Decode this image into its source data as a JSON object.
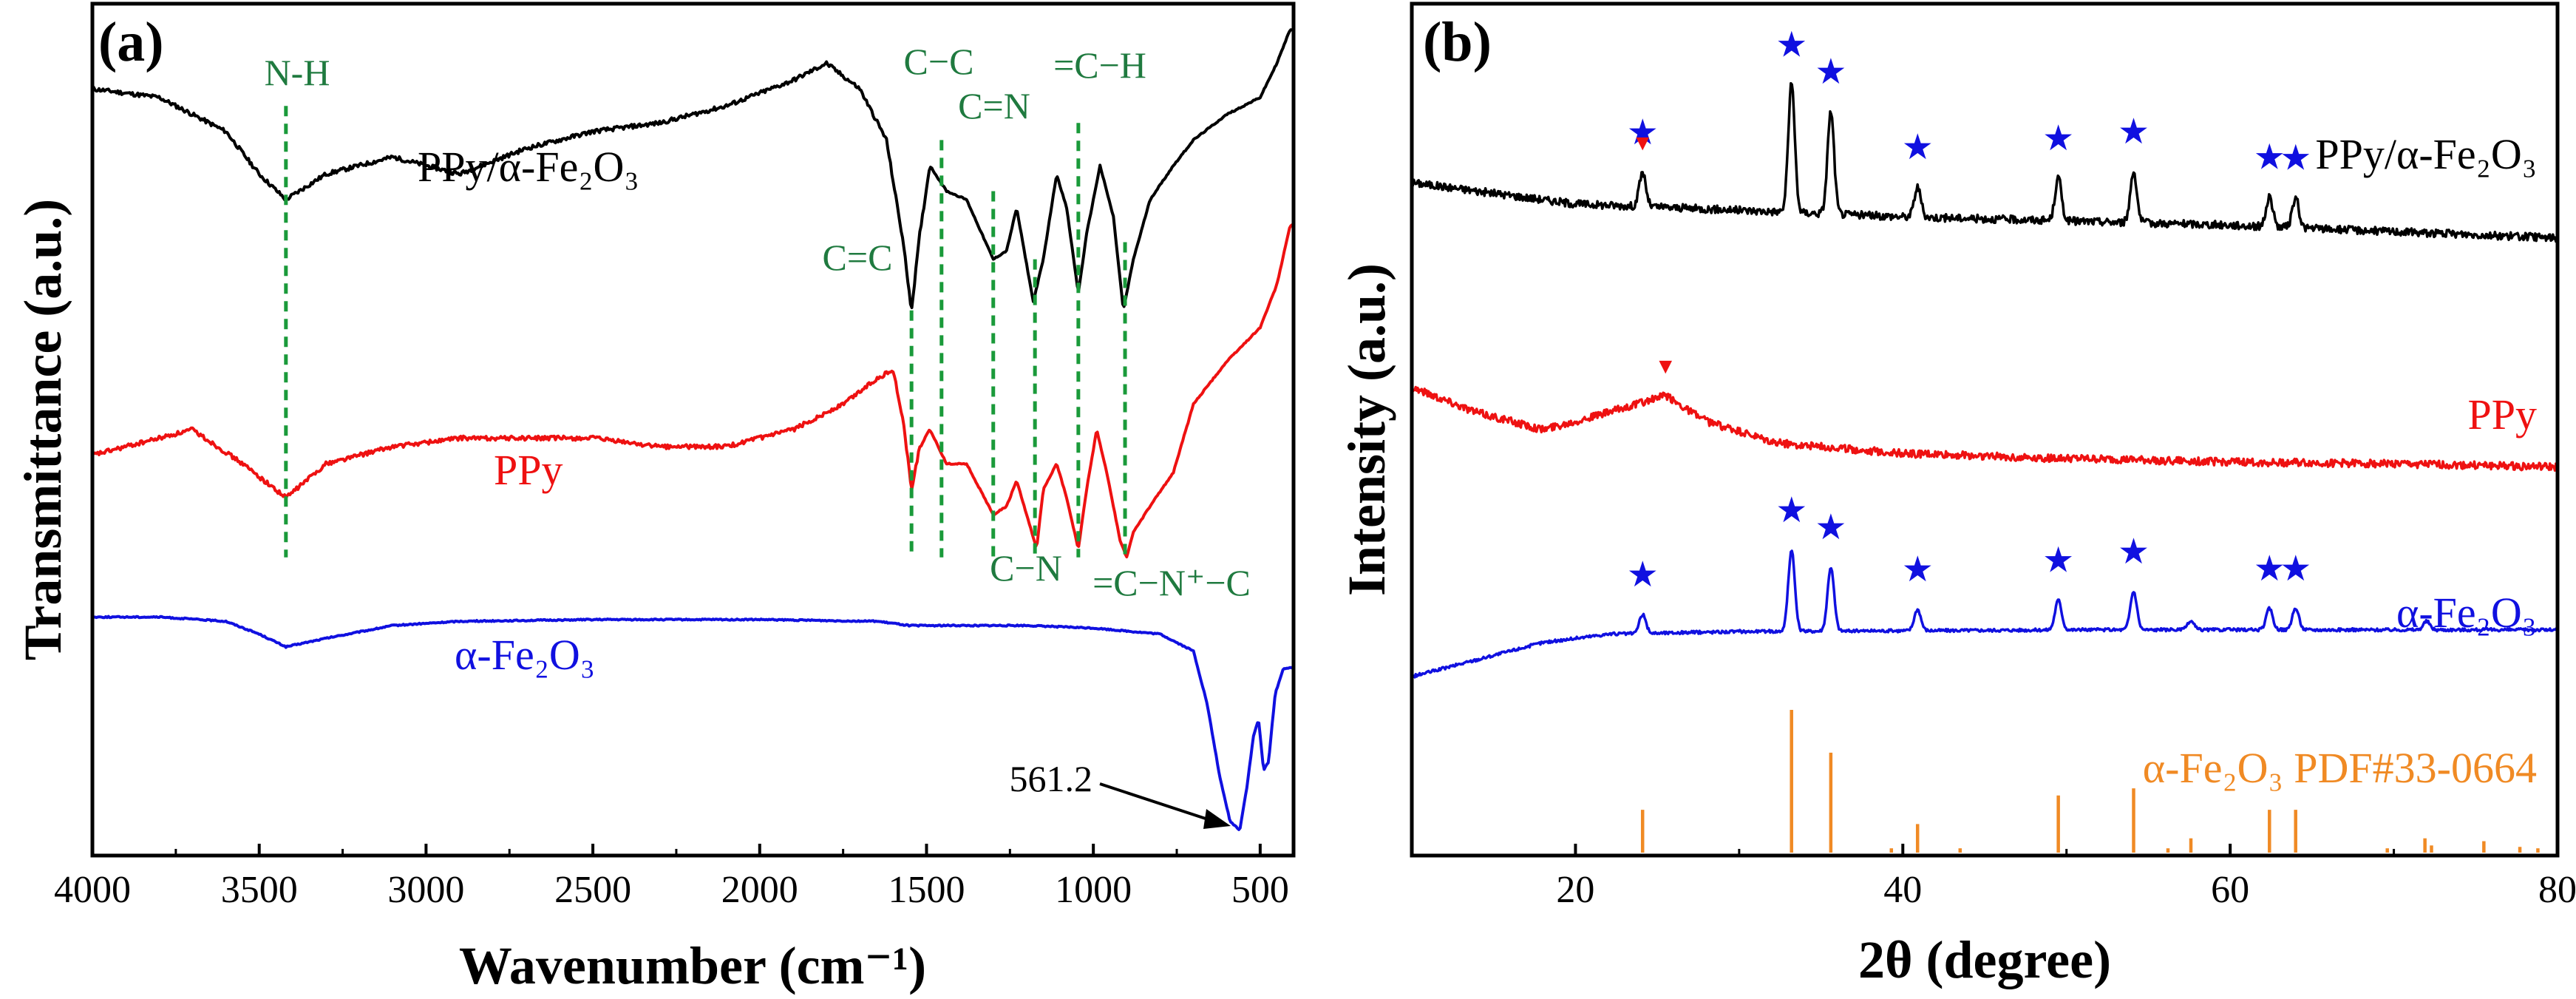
{
  "colors": {
    "black": "#000000",
    "red": "#ee1111",
    "blue": "#1010e0",
    "green": "#1a9a3a",
    "green_text": "#1f7a3f",
    "orange": "#f08a24"
  },
  "chart_data": [
    {
      "type": "line",
      "panel_label": "(a)",
      "title": "",
      "xlabel": "Wavenumber (cm⁻¹)",
      "ylabel": "Transmittance (a.u.)",
      "xlim": [
        4000,
        400
      ],
      "x_reversed": true,
      "ylim": [
        0,
        100
      ],
      "x_ticks": [
        "4000",
        "3500",
        "3000",
        "2500",
        "2000",
        "1500",
        "1000",
        "500"
      ],
      "x_tick_values": [
        4000,
        3500,
        3000,
        2500,
        2000,
        1500,
        1000,
        500
      ],
      "legend_position": "inline labels",
      "series": [
        {
          "name": "PPy/α-Fe₂O₃",
          "color": "#000000",
          "points": [
            [
              4000,
              90
            ],
            [
              3800,
              89
            ],
            [
              3600,
              85
            ],
            [
              3500,
              80
            ],
            [
              3420,
              77
            ],
            [
              3300,
              80
            ],
            [
              3100,
              82
            ],
            [
              2900,
              80
            ],
            [
              2700,
              83
            ],
            [
              2500,
              85
            ],
            [
              2300,
              86
            ],
            [
              2100,
              88
            ],
            [
              1900,
              91
            ],
            [
              1800,
              93
            ],
            [
              1700,
              90
            ],
            [
              1620,
              84
            ],
            [
              1570,
              72
            ],
            [
              1545,
              64
            ],
            [
              1520,
              73
            ],
            [
              1490,
              81
            ],
            [
              1440,
              78
            ],
            [
              1380,
              77
            ],
            [
              1300,
              70
            ],
            [
              1260,
              71
            ],
            [
              1230,
              76
            ],
            [
              1180,
              65
            ],
            [
              1150,
              70
            ],
            [
              1110,
              80
            ],
            [
              1080,
              76
            ],
            [
              1045,
              66
            ],
            [
              1020,
              73
            ],
            [
              980,
              81
            ],
            [
              940,
              75
            ],
            [
              910,
              64
            ],
            [
              880,
              70
            ],
            [
              830,
              77
            ],
            [
              760,
              81
            ],
            [
              700,
              84
            ],
            [
              600,
              87
            ],
            [
              500,
              89
            ],
            [
              450,
              93
            ],
            [
              410,
              97
            ]
          ]
        },
        {
          "name": "PPy",
          "color": "#ee1111",
          "points": [
            [
              4000,
              47
            ],
            [
              3800,
              49
            ],
            [
              3700,
              50
            ],
            [
              3550,
              46
            ],
            [
              3420,
              42
            ],
            [
              3300,
              46
            ],
            [
              3100,
              48
            ],
            [
              2900,
              49
            ],
            [
              2700,
              49
            ],
            [
              2500,
              49
            ],
            [
              2300,
              48
            ],
            [
              2100,
              48
            ],
            [
              1900,
              50
            ],
            [
              1750,
              53
            ],
            [
              1650,
              56
            ],
            [
              1600,
              57
            ],
            [
              1570,
              51
            ],
            [
              1545,
              43
            ],
            [
              1520,
              48
            ],
            [
              1490,
              50
            ],
            [
              1440,
              46
            ],
            [
              1380,
              46
            ],
            [
              1300,
              40
            ],
            [
              1260,
              41
            ],
            [
              1230,
              44
            ],
            [
              1170,
              36
            ],
            [
              1150,
              43
            ],
            [
              1110,
              46
            ],
            [
              1080,
              42
            ],
            [
              1045,
              36
            ],
            [
              1020,
              43
            ],
            [
              990,
              50
            ],
            [
              960,
              45
            ],
            [
              920,
              37
            ],
            [
              900,
              35
            ],
            [
              880,
              38
            ],
            [
              830,
              41
            ],
            [
              760,
              45
            ],
            [
              700,
              53
            ],
            [
              600,
              58
            ],
            [
              500,
              62
            ],
            [
              450,
              67
            ],
            [
              410,
              74
            ]
          ]
        },
        {
          "name": "α-Fe₂O₃",
          "color": "#1010e0",
          "points": [
            [
              4000,
              28
            ],
            [
              3800,
              28
            ],
            [
              3600,
              27.5
            ],
            [
              3500,
              26
            ],
            [
              3420,
              24.5
            ],
            [
              3300,
              25.5
            ],
            [
              3100,
              27
            ],
            [
              2900,
              27.5
            ],
            [
              2500,
              27.7
            ],
            [
              2000,
              27.7
            ],
            [
              1650,
              27.5
            ],
            [
              1550,
              27
            ],
            [
              1400,
              27
            ],
            [
              1200,
              27
            ],
            [
              1000,
              26.7
            ],
            [
              800,
              26
            ],
            [
              700,
              24
            ],
            [
              660,
              18
            ],
            [
              620,
              9
            ],
            [
              590,
              4
            ],
            [
              561.2,
              3
            ],
            [
              540,
              8
            ],
            [
              520,
              14
            ],
            [
              505,
              16
            ],
            [
              490,
              10
            ],
            [
              475,
              11
            ],
            [
              455,
              19
            ],
            [
              430,
              22
            ],
            [
              410,
              22
            ]
          ]
        }
      ],
      "vlines": [
        3420,
        1545,
        1455,
        1300,
        1175,
        1045,
        905
      ],
      "annotations": [
        {
          "text": "N-H",
          "x": 3420
        },
        {
          "text": "C−C",
          "x": 1455
        },
        {
          "text": "C=N",
          "x": 1300
        },
        {
          "text": "=C−H",
          "x": 1045
        },
        {
          "text": "C=C",
          "x": 1545
        },
        {
          "text": "C−N",
          "x": 1175
        },
        {
          "text": "=C−N⁺−C",
          "x": 905
        },
        {
          "text": "561.2",
          "x": 561.2
        }
      ]
    },
    {
      "type": "line",
      "panel_label": "(b)",
      "title": "",
      "xlabel": "2θ (degree)",
      "ylabel": "Intensity (a.u.)",
      "xlim": [
        10,
        80
      ],
      "ylim": [
        0,
        100
      ],
      "x_ticks": [
        "20",
        "40",
        "60",
        "80"
      ],
      "x_tick_values": [
        20,
        40,
        60,
        80
      ],
      "legend_position": "inline labels",
      "series": [
        {
          "name": "PPy/α-Fe₂O₃",
          "color": "#000000",
          "baseline": [
            [
              10,
              79
            ],
            [
              20,
              76.5
            ],
            [
              40,
              75
            ],
            [
              60,
              74
            ],
            [
              80,
              72.5
            ]
          ],
          "peaks": [
            [
              24.1,
              4
            ],
            [
              33.2,
              15
            ],
            [
              35.6,
              12
            ],
            [
              40.9,
              3.5
            ],
            [
              49.5,
              5
            ],
            [
              54.1,
              6
            ],
            [
              62.4,
              3.5
            ],
            [
              64.0,
              3.5
            ]
          ]
        },
        {
          "name": "PPy",
          "color": "#ee1111",
          "baseline": [
            [
              10,
              55
            ],
            [
              14,
              52
            ],
            [
              18,
              50
            ],
            [
              22,
              52
            ],
            [
              25.5,
              54
            ],
            [
              28,
              51
            ],
            [
              32,
              48.5
            ],
            [
              40,
              47.2
            ],
            [
              50,
              46.6
            ],
            [
              60,
              46.2
            ],
            [
              70,
              46
            ],
            [
              80,
              45.6
            ]
          ]
        },
        {
          "name": "α-Fe₂O₃",
          "color": "#1010e0",
          "baseline": [
            [
              10,
              21
            ],
            [
              14,
              23
            ],
            [
              18,
              25
            ],
            [
              22,
              26
            ],
            [
              30,
              26.3
            ],
            [
              50,
              26.5
            ],
            [
              80,
              26.5
            ]
          ],
          "peaks": [
            [
              24.1,
              2.2
            ],
            [
              33.2,
              9.5
            ],
            [
              35.6,
              7.5
            ],
            [
              40.9,
              2.5
            ],
            [
              49.5,
              3.5
            ],
            [
              54.1,
              4.5
            ],
            [
              57.6,
              1
            ],
            [
              62.4,
              2.5
            ],
            [
              64.0,
              2.5
            ],
            [
              72.0,
              1
            ]
          ]
        }
      ],
      "reference_pattern": {
        "name": "α-Fe₂O₃ PDF#33-0664",
        "color": "#f08a24",
        "sticks": [
          [
            24.1,
            30
          ],
          [
            33.2,
            100
          ],
          [
            35.6,
            70
          ],
          [
            39.3,
            3
          ],
          [
            40.9,
            20
          ],
          [
            43.5,
            3
          ],
          [
            49.5,
            40
          ],
          [
            54.1,
            45
          ],
          [
            56.2,
            3
          ],
          [
            57.6,
            10
          ],
          [
            62.4,
            30
          ],
          [
            64.0,
            30
          ],
          [
            69.6,
            3
          ],
          [
            71.9,
            10
          ],
          [
            72.3,
            5
          ],
          [
            75.5,
            8
          ],
          [
            77.7,
            4
          ],
          [
            78.8,
            3
          ]
        ]
      },
      "star_markers": [
        {
          "series": "PPy/α-Fe₂O₃",
          "x": [
            24.1,
            33.2,
            35.6,
            40.9,
            49.5,
            54.1,
            62.4,
            64.0
          ]
        },
        {
          "series": "α-Fe₂O₃",
          "x": [
            24.1,
            33.2,
            35.6,
            40.9,
            49.5,
            54.1,
            62.4,
            64.0
          ]
        }
      ],
      "triangle_markers": [
        {
          "series": "PPy/α-Fe₂O₃",
          "x": 24.1
        },
        {
          "series": "PPy",
          "x": 25.5
        }
      ],
      "star_symbol": "★",
      "triangle_symbol": "▼"
    }
  ]
}
